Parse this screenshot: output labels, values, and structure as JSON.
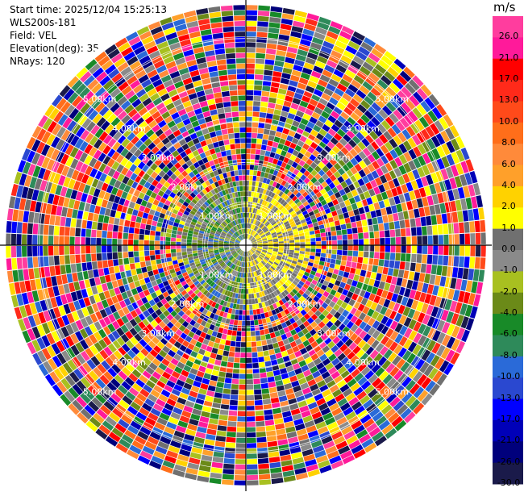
{
  "header": {
    "start_time": "Start time: 2025/12/04 15:25:13",
    "instrument": "WLS200s-181",
    "field": "Field: VEL",
    "elevation": "Elevation(deg): 35.00",
    "nrays": "NRays: 120"
  },
  "chart_data": {
    "type": "heatmap",
    "subtype": "polar-ppi",
    "field": "VEL",
    "units": "m/s",
    "nrays": 120,
    "elevation_deg": 35.0,
    "range_rings_km": [
      1.0,
      2.0,
      3.0,
      4.0,
      5.0
    ],
    "range_labels": [
      "1.00km",
      "2.00km",
      "3.00km",
      "4.00km",
      "5.00km"
    ],
    "max_range_km": 5.85,
    "pattern": "near-field velocities 0 to 4 m/s (yellow/grey/green), beyond about 1.5 km mostly noise spanning the full -30 to 30 m/s scale",
    "colorbar": {
      "label": "m/s",
      "ticks": [
        "26.0",
        "21.0",
        "17.0",
        "13.0",
        "10.0",
        "8.0",
        "6.0",
        "4.0",
        "2.0",
        "1.0",
        "0.0",
        "-1.0",
        "-2.0",
        "-4.0",
        "-6.0",
        "-8.0",
        "-10.0",
        "-13.0",
        "-17.0",
        "-21.0",
        "-26.0",
        "-30.0"
      ],
      "colors": [
        "#ff3d9e",
        "#ff1a9a",
        "#ff0000",
        "#ff2a1a",
        "#ff4a1a",
        "#ff6e1a",
        "#ff8a3a",
        "#ffa02a",
        "#ffd200",
        "#ffff00",
        "#707070",
        "#8a8a8a",
        "#a8c020",
        "#6b8a18",
        "#188a28",
        "#2e8a5a",
        "#2a6ad8",
        "#2a48d0",
        "#0000ff",
        "#0000b8",
        "#00007c",
        "#1a1a4a"
      ]
    }
  }
}
